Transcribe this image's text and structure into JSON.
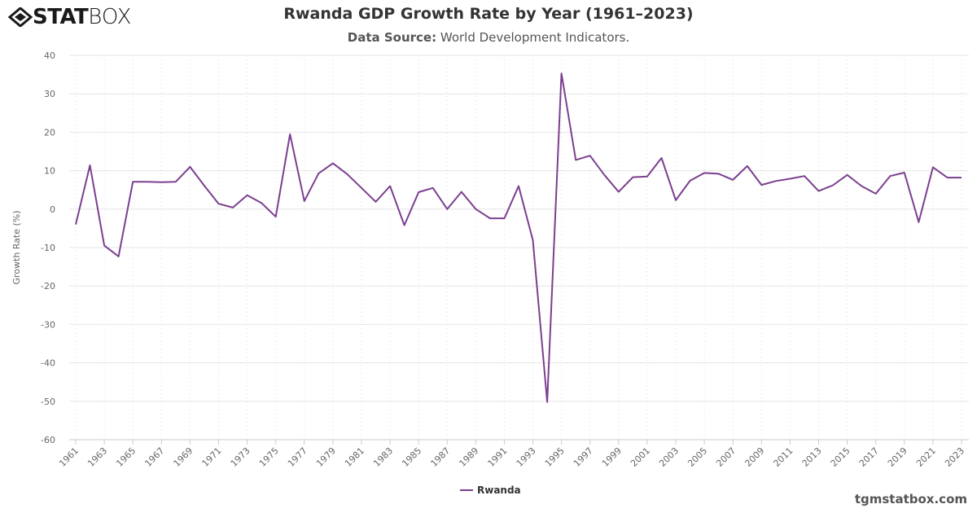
{
  "logo_text": "STATBOX",
  "title": "Rwanda GDP Growth Rate by Year (1961–2023)",
  "subtitle_label": "Data Source:",
  "subtitle_value": "World Development Indicators.",
  "watermark": "tgmstatbox.com",
  "colors": {
    "series": "#7b3f8f",
    "grid": "#e6e6e6",
    "text": "#666666"
  },
  "chart_data": {
    "type": "line",
    "title": "Rwanda GDP Growth Rate by Year (1961–2023)",
    "xlabel": "",
    "ylabel": "Growth Rate (%)",
    "ylim": [
      -60,
      40
    ],
    "yticks": [
      40,
      30,
      20,
      10,
      0,
      -10,
      -20,
      -30,
      -40,
      -50,
      -60
    ],
    "xticks": [
      "1961",
      "1963",
      "1965",
      "1967",
      "1969",
      "1971",
      "1973",
      "1975",
      "1977",
      "1979",
      "1981",
      "1983",
      "1985",
      "1987",
      "1989",
      "1991",
      "1993",
      "1995",
      "1997",
      "1999",
      "2001",
      "2003",
      "2005",
      "2007",
      "2009",
      "2011",
      "2013",
      "2015",
      "2017",
      "2019",
      "2021",
      "2023"
    ],
    "grid": true,
    "legend": "bottom-center",
    "x": [
      1961,
      1962,
      1963,
      1964,
      1965,
      1966,
      1967,
      1968,
      1969,
      1970,
      1971,
      1972,
      1973,
      1974,
      1975,
      1976,
      1977,
      1978,
      1979,
      1980,
      1981,
      1982,
      1983,
      1984,
      1985,
      1986,
      1987,
      1988,
      1989,
      1990,
      1991,
      1992,
      1993,
      1994,
      1995,
      1996,
      1997,
      1998,
      1999,
      2000,
      2001,
      2002,
      2003,
      2004,
      2005,
      2006,
      2007,
      2008,
      2009,
      2010,
      2011,
      2012,
      2013,
      2014,
      2015,
      2016,
      2017,
      2018,
      2019,
      2020,
      2021,
      2022,
      2023
    ],
    "series": [
      {
        "name": "Rwanda",
        "values": [
          -4.0,
          11.4,
          -9.5,
          -12.3,
          7.1,
          7.1,
          7.0,
          7.1,
          11.0,
          6.1,
          1.4,
          0.4,
          3.6,
          1.6,
          -2.0,
          19.5,
          2.1,
          9.3,
          11.9,
          9.1,
          5.5,
          1.9,
          6.0,
          -4.2,
          4.4,
          5.5,
          0.0,
          4.5,
          0.0,
          -2.4,
          -2.4,
          6.0,
          -8.1,
          -50.2,
          35.3,
          12.8,
          13.9,
          8.9,
          4.5,
          8.3,
          8.5,
          13.3,
          2.3,
          7.4,
          9.4,
          9.2,
          7.6,
          11.2,
          6.3,
          7.3,
          7.9,
          8.6,
          4.7,
          6.2,
          8.9,
          6.0,
          4.0,
          8.6,
          9.5,
          -3.4,
          10.9,
          8.2,
          8.2
        ]
      }
    ]
  }
}
